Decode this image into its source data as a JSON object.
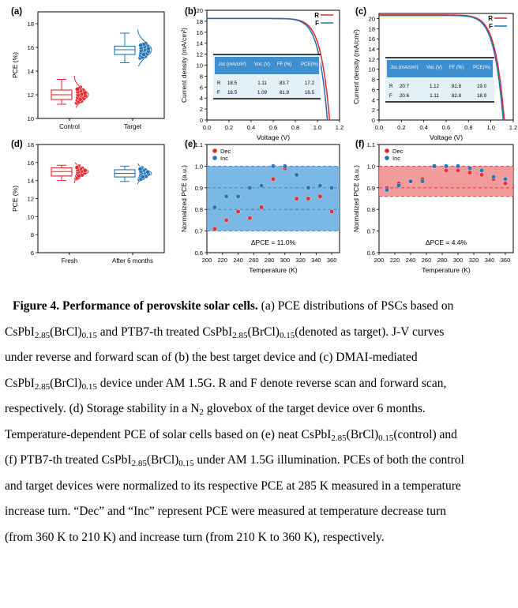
{
  "figure": {
    "panel_labels": [
      "(a)",
      "(b)",
      "(c)",
      "(d)",
      "(e)",
      "(f)"
    ]
  },
  "chart_data": [
    {
      "panel": "(a)",
      "type": "box",
      "ylabel": "PCE (%)",
      "ylim": [
        10,
        19
      ],
      "yticks": [
        "10",
        "12",
        "14",
        "16",
        "18"
      ],
      "categories": [
        "Control",
        "Target"
      ],
      "colors": [
        "#e8262d",
        "#2271b3"
      ],
      "series": [
        {
          "box": {
            "min": 11.2,
            "q1": 11.6,
            "median": 12.0,
            "q3": 12.4,
            "max": 13.3
          }
        },
        {
          "box": {
            "min": 14.7,
            "q1": 15.4,
            "median": 15.8,
            "q3": 16.1,
            "max": 17.2
          }
        }
      ]
    },
    {
      "panel": "(b)",
      "type": "line",
      "xlabel": "Voltage (V)",
      "ylabel": "Current density (mA/cm²)",
      "xlim": [
        0.0,
        1.2
      ],
      "ylim": [
        0,
        20
      ],
      "xticks": [
        "0.0",
        "0.2",
        "0.4",
        "0.6",
        "0.8",
        "1.0",
        "1.2"
      ],
      "yticks": [
        "0",
        "2",
        "4",
        "6",
        "8",
        "10",
        "12",
        "14",
        "16",
        "18",
        "20"
      ],
      "legend": [
        "R",
        "F"
      ],
      "colors": [
        "#e8262d",
        "#2271b3"
      ],
      "series": [
        {
          "name": "R",
          "jsc": 18.5,
          "voc": 1.11
        },
        {
          "name": "F",
          "jsc": 18.5,
          "voc": 1.09
        }
      ],
      "table": {
        "headers": [
          "Jsc (mA/cm²)",
          "Voc (V)",
          "FF (%)",
          "PCE(%)"
        ],
        "rows": [
          [
            "R",
            "18.5",
            "1.11",
            "83.7",
            "17.2"
          ],
          [
            "F",
            "18.5",
            "1.09",
            "81.9",
            "16.5"
          ]
        ]
      }
    },
    {
      "panel": "(c)",
      "type": "line",
      "xlabel": "Voltage (V)",
      "ylabel": "Current density (mA/cm²)",
      "xlim": [
        0.0,
        1.2
      ],
      "ylim": [
        0,
        21
      ],
      "xticks": [
        "0.0",
        "0.2",
        "0.4",
        "0.6",
        "0.8",
        "1.0",
        "1.2"
      ],
      "yticks": [
        "0",
        "2",
        "4",
        "6",
        "8",
        "10",
        "12",
        "14",
        "16",
        "18",
        "20"
      ],
      "legend": [
        "R",
        "F"
      ],
      "colors": [
        "#e8262d",
        "#2271b3"
      ],
      "series": [
        {
          "name": "R",
          "jsc": 20.7,
          "voc": 1.12
        },
        {
          "name": "F",
          "jsc": 20.6,
          "voc": 1.11
        }
      ],
      "table": {
        "headers": [
          "Jsc (mA/cm²)",
          "Voc (V)",
          "FF (%)",
          "PCE(%)"
        ],
        "rows": [
          [
            "R",
            "20.7",
            "1.12",
            "81.8",
            "19.0"
          ],
          [
            "F",
            "20.6",
            "1.11",
            "82.8",
            "18.9"
          ]
        ]
      }
    },
    {
      "panel": "(d)",
      "type": "box",
      "ylabel": "PCE (%)",
      "ylim": [
        6,
        18
      ],
      "yticks": [
        "6",
        "8",
        "10",
        "12",
        "14",
        "16",
        "18"
      ],
      "categories": [
        "Fresh",
        "After 6 months"
      ],
      "colors": [
        "#e8262d",
        "#2271b3"
      ],
      "series": [
        {
          "box": {
            "min": 14.0,
            "q1": 14.5,
            "median": 15.0,
            "q3": 15.4,
            "max": 15.7
          }
        },
        {
          "box": {
            "min": 13.9,
            "q1": 14.4,
            "median": 14.8,
            "q3": 15.2,
            "max": 15.6
          }
        }
      ]
    },
    {
      "panel": "(e)",
      "type": "scatter",
      "xlabel": "Temperature (K)",
      "ylabel": "Normalized PCE (a.u.)",
      "xlim": [
        200,
        370
      ],
      "ylim": [
        0.6,
        1.1
      ],
      "xticks": [
        "200",
        "220",
        "240",
        "260",
        "280",
        "300",
        "320",
        "340",
        "360"
      ],
      "yticks": [
        "0.6",
        "0.7",
        "0.8",
        "0.9",
        "1.0",
        "1.1"
      ],
      "band": [
        0.7,
        1.0
      ],
      "dashed_lines": [
        0.8,
        0.9
      ],
      "annotation": "ΔPCE = 11.0%",
      "legend": [
        "Dec",
        "Inc"
      ],
      "series": [
        {
          "name": "Dec",
          "x": [
            210,
            225,
            240,
            255,
            270,
            285,
            300,
            315,
            330,
            345,
            360
          ],
          "y": [
            0.71,
            0.75,
            0.79,
            0.76,
            0.81,
            0.94,
            0.99,
            0.85,
            0.85,
            0.86,
            0.79
          ]
        },
        {
          "name": "Inc",
          "x": [
            210,
            225,
            240,
            255,
            270,
            285,
            300,
            315,
            330,
            345,
            360
          ],
          "y": [
            0.81,
            0.86,
            0.86,
            0.9,
            0.91,
            1.0,
            1.0,
            0.96,
            0.9,
            0.91,
            0.9
          ]
        }
      ]
    },
    {
      "panel": "(f)",
      "type": "scatter",
      "xlabel": "Temperature (K)",
      "ylabel": "Normalized PCE (a.u.)",
      "xlim": [
        200,
        370
      ],
      "ylim": [
        0.6,
        1.1
      ],
      "xticks": [
        "200",
        "220",
        "240",
        "260",
        "280",
        "300",
        "320",
        "340",
        "360"
      ],
      "yticks": [
        "0.6",
        "0.7",
        "0.8",
        "0.9",
        "1.0",
        "1.1"
      ],
      "band": [
        0.86,
        1.0
      ],
      "dashed_lines": [
        0.9
      ],
      "annotation": "ΔPCE = 4.4%",
      "legend": [
        "Dec",
        "Inc"
      ],
      "series": [
        {
          "name": "Dec",
          "x": [
            210,
            225,
            240,
            255,
            270,
            285,
            300,
            315,
            330,
            345,
            360
          ],
          "y": [
            0.9,
            0.92,
            0.93,
            0.94,
            1.0,
            0.98,
            0.98,
            0.97,
            0.96,
            0.94,
            0.92
          ]
        },
        {
          "name": "Inc",
          "x": [
            210,
            225,
            240,
            255,
            270,
            285,
            300,
            315,
            330,
            345,
            360
          ],
          "y": [
            0.89,
            0.91,
            0.93,
            0.93,
            1.0,
            1.0,
            1.0,
            0.99,
            0.98,
            0.95,
            0.94
          ]
        }
      ]
    }
  ],
  "caption": {
    "lines": [
      {
        "parts": [
          {
            "t": "Figure 4. Performance of perovskite solar cells.",
            "b": true
          },
          {
            "t": " (a) PCE distributions of PSCs based on"
          }
        ]
      },
      {
        "parts": [
          {
            "t": "CsPbI"
          },
          {
            "t": "2.85",
            "sub": true
          },
          {
            "t": "(BrCl)"
          },
          {
            "t": "0.15",
            "sub": true
          },
          {
            "t": " and PTB7-th treated CsPbI"
          },
          {
            "t": "2.85",
            "sub": true
          },
          {
            "t": "(BrCl)"
          },
          {
            "t": "0.15",
            "sub": true
          },
          {
            "t": "(denoted as target). J-V curves"
          }
        ]
      },
      {
        "parts": [
          {
            "t": "under reverse and forward scan of (b) the best target device and (c) DMAI-mediated"
          }
        ]
      },
      {
        "parts": [
          {
            "t": "CsPbI"
          },
          {
            "t": "2.85",
            "sub": true
          },
          {
            "t": "(BrCl)"
          },
          {
            "t": "0.15",
            "sub": true
          },
          {
            "t": " device under AM 1.5G. R and F denote reverse scan and forward scan,"
          }
        ]
      },
      {
        "parts": [
          {
            "t": "respectively. (d) Storage stability in a N"
          },
          {
            "t": "2",
            "sub": true
          },
          {
            "t": " glovebox of the target device over 6 months."
          }
        ]
      },
      {
        "parts": [
          {
            "t": "Temperature-dependent PCE of solar cells based on (e) neat CsPbI"
          },
          {
            "t": "2.85",
            "sub": true
          },
          {
            "t": "(BrCl)"
          },
          {
            "t": "0.15",
            "sub": true
          },
          {
            "t": "(control) and"
          }
        ]
      },
      {
        "parts": [
          {
            "t": "(f) PTB7-th treated CsPbI"
          },
          {
            "t": "2.85",
            "sub": true
          },
          {
            "t": "(BrCl)"
          },
          {
            "t": "0.15",
            "sub": true
          },
          {
            "t": " under AM 1.5G illumination. PCEs of both the control"
          }
        ]
      },
      {
        "parts": [
          {
            "t": "and target devices were normalized to its respective PCE at 285 K measured in a temperature"
          }
        ]
      },
      {
        "parts": [
          {
            "t": "increase turn. “Dec” and “Inc” represent PCE were measured at temperature decrease turn"
          }
        ]
      },
      {
        "parts": [
          {
            "t": "(from 360 K to 210 K) and increase turn (from 210 K to 360 K), respectively."
          }
        ]
      }
    ]
  }
}
